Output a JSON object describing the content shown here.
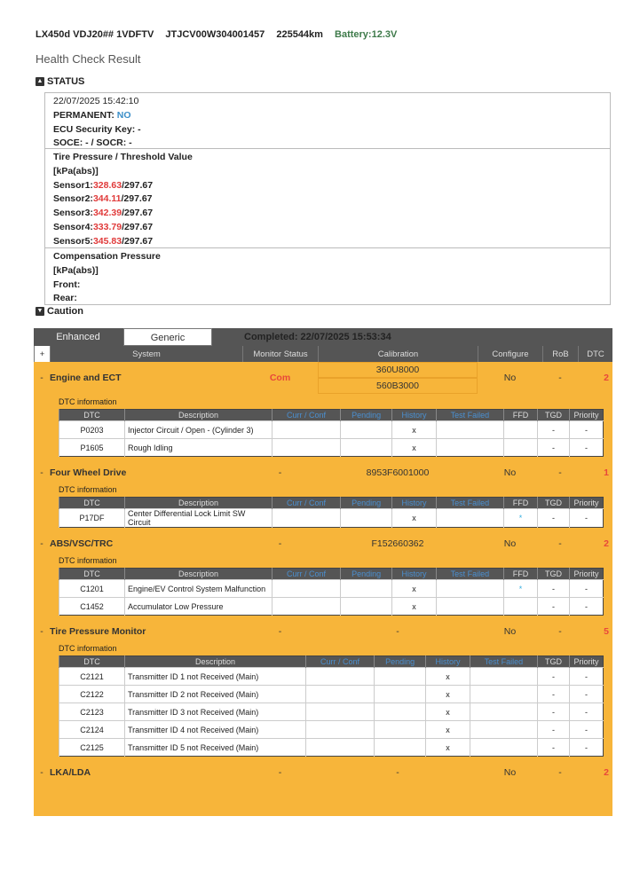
{
  "header": {
    "model": "LX450d VDJ20## 1VDFTV",
    "vin": "JTJCV00W304001457",
    "odometer": "225544km",
    "battery": "Battery:12.3V"
  },
  "title": "Health Check Result",
  "status": {
    "label": "STATUS",
    "datetime": "22/07/2025 15:42:10",
    "permanent_label": "PERMANENT:",
    "permanent_value": "NO",
    "ecu_key": "ECU Security Key: -",
    "soce": "SOCE: - / SOCR: -",
    "tire_title": "Tire Pressure / Threshold Value",
    "tire_unit": "[kPa(abs)]",
    "sensors": [
      {
        "label": "Sensor1:",
        "value": "328.63",
        "threshold": "/297.67"
      },
      {
        "label": "Sensor2:",
        "value": "344.11",
        "threshold": "/297.67"
      },
      {
        "label": "Sensor3:",
        "value": "342.39",
        "threshold": "/297.67"
      },
      {
        "label": "Sensor4:",
        "value": "333.79",
        "threshold": "/297.67"
      },
      {
        "label": "Sensor5:",
        "value": "345.83",
        "threshold": "/297.67"
      }
    ],
    "comp_title": "Compensation Pressure",
    "comp_unit": "[kPa(abs)]",
    "front": "Front:",
    "rear": "Rear:"
  },
  "caution": "Caution",
  "tabs": {
    "enhanced": "Enhanced",
    "generic": "Generic"
  },
  "completed": "Completed: 22/07/2025 15:53:34",
  "columns": {
    "expand": "+",
    "system": "System",
    "monitor": "Monitor Status",
    "calibration": "Calibration",
    "configure": "Configure",
    "rob": "RoB",
    "dtc": "DTC"
  },
  "dtc_info": "DTC information",
  "dtc_columns": {
    "dtc": "DTC",
    "description": "Description",
    "curr": "Curr / Conf",
    "pending": "Pending",
    "history": "History",
    "test_failed": "Test Failed",
    "ffd": "FFD",
    "tgd": "TGD",
    "priority": "Priority"
  },
  "systems": [
    {
      "name": "Engine and ECT",
      "monitor": "Com",
      "calibration": [
        "360U8000",
        "560B3000"
      ],
      "configure": "No",
      "rob": "-",
      "dtc": "2",
      "rows": [
        {
          "dtc": "P0203",
          "description": "Injector Circuit / Open - (Cylinder 3)",
          "history": "x",
          "ffd": "",
          "tgd": "-",
          "priority": "-"
        },
        {
          "dtc": "P1605",
          "description": "Rough Idling",
          "history": "x",
          "ffd": "",
          "tgd": "-",
          "priority": "-"
        }
      ]
    },
    {
      "name": "Four Wheel Drive",
      "monitor": "-",
      "calibration": [
        "8953F6001000"
      ],
      "configure": "No",
      "rob": "-",
      "dtc": "1",
      "rows": [
        {
          "dtc": "P17DF",
          "description": "Center Differential Lock Limit SW Circuit",
          "history": "x",
          "ffd": "*",
          "tgd": "-",
          "priority": "-"
        }
      ]
    },
    {
      "name": "ABS/VSC/TRC",
      "monitor": "-",
      "calibration": [
        "F152660362"
      ],
      "configure": "No",
      "rob": "-",
      "dtc": "2",
      "rows": [
        {
          "dtc": "C1201",
          "description": "Engine/EV Control System Malfunction",
          "history": "x",
          "ffd": "*",
          "tgd": "-",
          "priority": "-"
        },
        {
          "dtc": "C1452",
          "description": "Accumulator Low Pressure",
          "history": "x",
          "ffd": "",
          "tgd": "-",
          "priority": "-"
        }
      ]
    },
    {
      "name": "Tire Pressure Monitor",
      "monitor": "-",
      "calibration": [
        "-"
      ],
      "configure": "No",
      "rob": "-",
      "dtc": "5",
      "noffd": true,
      "rows": [
        {
          "dtc": "C2121",
          "description": "Transmitter ID 1 not Received (Main)",
          "history": "x",
          "tgd": "-",
          "priority": "-"
        },
        {
          "dtc": "C2122",
          "description": "Transmitter ID 2 not Received (Main)",
          "history": "x",
          "tgd": "-",
          "priority": "-"
        },
        {
          "dtc": "C2123",
          "description": "Transmitter ID 3 not Received (Main)",
          "history": "x",
          "tgd": "-",
          "priority": "-"
        },
        {
          "dtc": "C2124",
          "description": "Transmitter ID 4 not Received (Main)",
          "history": "x",
          "tgd": "-",
          "priority": "-"
        },
        {
          "dtc": "C2125",
          "description": "Transmitter ID 5 not Received (Main)",
          "history": "x",
          "tgd": "-",
          "priority": "-"
        }
      ]
    },
    {
      "name": "LKA/LDA",
      "monitor": "-",
      "calibration": [
        "-"
      ],
      "configure": "No",
      "rob": "-",
      "dtc": "2",
      "rows": []
    }
  ]
}
